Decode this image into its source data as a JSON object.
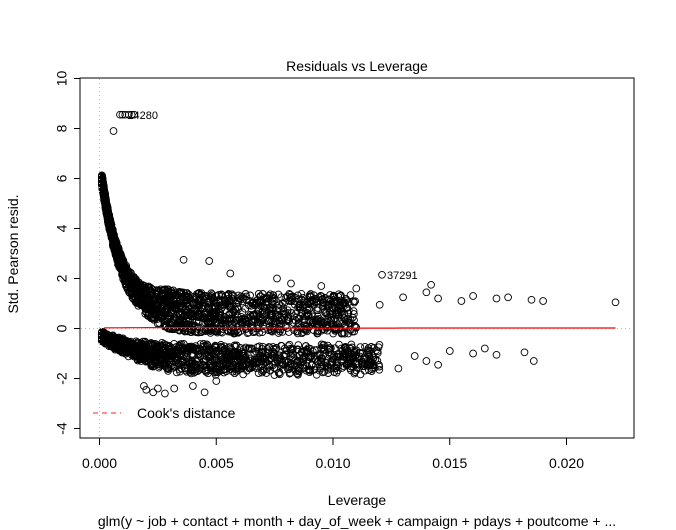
{
  "chart_data": {
    "type": "scatter",
    "title": "Residuals vs Leverage",
    "xlabel": "Leverage",
    "ylabel": "Std. Pearson resid.",
    "subtitle": "glm(y ~ job + contact + month + day_of_week + campaign + pdays + poutcome + ...",
    "xlim": [
      0,
      0.0222
    ],
    "ylim": [
      -4,
      10
    ],
    "xticks": [
      {
        "value": 0.0,
        "label": "0.000"
      },
      {
        "value": 0.005,
        "label": "0.005"
      },
      {
        "value": 0.01,
        "label": "0.010"
      },
      {
        "value": 0.015,
        "label": "0.015"
      },
      {
        "value": 0.02,
        "label": "0.020"
      }
    ],
    "yticks": [
      {
        "value": -4,
        "label": "-4"
      },
      {
        "value": -2,
        "label": "-2"
      },
      {
        "value": 0,
        "label": "0"
      },
      {
        "value": 2,
        "label": "2"
      },
      {
        "value": 4,
        "label": "4"
      },
      {
        "value": 6,
        "label": "6"
      },
      {
        "value": 8,
        "label": "8"
      },
      {
        "value": 10,
        "label": "10"
      }
    ],
    "grid": false,
    "legend": {
      "position": "bottom-left",
      "entries": [
        {
          "label": "Cook's distance",
          "color": "#ff4d4d",
          "style": "dashed"
        }
      ]
    },
    "annotations": [
      {
        "label": "24280",
        "x": 0.00098,
        "y": 8.55
      },
      {
        "label": "37291",
        "x": 0.0121,
        "y": 2.15
      }
    ],
    "reference_lines": {
      "horizontal_zero": "dotted",
      "vertical_zero": "dotted"
    },
    "colors": {
      "points": "#000000",
      "smooth": "#ff0000",
      "cook": "#ff4d4d",
      "guide": "#bbbbbb"
    },
    "points_outliers": [
      {
        "x": 0.00088,
        "y": 8.55
      },
      {
        "x": 0.00098,
        "y": 8.55
      },
      {
        "x": 0.0011,
        "y": 8.55
      },
      {
        "x": 0.00125,
        "y": 8.55
      },
      {
        "x": 0.00138,
        "y": 8.55
      },
      {
        "x": 0.00148,
        "y": 8.55
      },
      {
        "x": 0.0006,
        "y": 7.9
      },
      {
        "x": 0.0121,
        "y": 2.15
      },
      {
        "x": 0.0221,
        "y": 1.05
      },
      {
        "x": 0.019,
        "y": 1.1
      },
      {
        "x": 0.0185,
        "y": 1.15
      },
      {
        "x": 0.0175,
        "y": 1.25
      },
      {
        "x": 0.017,
        "y": 1.2
      },
      {
        "x": 0.016,
        "y": 1.3
      },
      {
        "x": 0.0155,
        "y": 1.1
      },
      {
        "x": 0.0145,
        "y": 1.2
      },
      {
        "x": 0.014,
        "y": 1.45
      },
      {
        "x": 0.0142,
        "y": 1.75
      },
      {
        "x": 0.013,
        "y": 1.25
      },
      {
        "x": 0.012,
        "y": 0.95
      },
      {
        "x": 0.0186,
        "y": -1.3
      },
      {
        "x": 0.0182,
        "y": -0.95
      },
      {
        "x": 0.017,
        "y": -1.05
      },
      {
        "x": 0.0165,
        "y": -0.8
      },
      {
        "x": 0.016,
        "y": -1.0
      },
      {
        "x": 0.015,
        "y": -0.9
      },
      {
        "x": 0.0145,
        "y": -1.45
      },
      {
        "x": 0.014,
        "y": -1.3
      },
      {
        "x": 0.0135,
        "y": -1.1
      },
      {
        "x": 0.0128,
        "y": -1.6
      },
      {
        "x": 0.011,
        "y": -1.4
      },
      {
        "x": 0.0105,
        "y": -1.1
      },
      {
        "x": 0.0105,
        "y": -0.75
      },
      {
        "x": 0.0095,
        "y": -1.2
      },
      {
        "x": 0.0093,
        "y": -1.85
      },
      {
        "x": 0.0085,
        "y": -1.85
      },
      {
        "x": 0.0082,
        "y": -1.5
      },
      {
        "x": 0.0036,
        "y": 2.75
      },
      {
        "x": 0.0047,
        "y": 2.7
      },
      {
        "x": 0.0056,
        "y": 2.2
      },
      {
        "x": 0.0076,
        "y": 2.0
      },
      {
        "x": 0.0082,
        "y": 1.8
      },
      {
        "x": 0.0095,
        "y": 1.7
      },
      {
        "x": 0.011,
        "y": 1.6
      },
      {
        "x": 0.0019,
        "y": -2.3
      },
      {
        "x": 0.002,
        "y": -2.45
      },
      {
        "x": 0.0023,
        "y": -2.55
      },
      {
        "x": 0.0025,
        "y": -2.4
      },
      {
        "x": 0.0028,
        "y": -2.6
      },
      {
        "x": 0.0032,
        "y": -2.4
      },
      {
        "x": 0.004,
        "y": -2.3
      },
      {
        "x": 0.0045,
        "y": -2.55
      },
      {
        "x": 0.005,
        "y": -2.1
      }
    ],
    "bands": [
      {
        "description": "upper",
        "x_start": 0.0001,
        "x_end": 0.011,
        "y_start": 6.6,
        "y_floor": 0.35,
        "y_decay": 0.00085,
        "spread_max": 1.6,
        "density": 1800
      },
      {
        "description": "lower",
        "x_start": 0.0001,
        "x_end": 0.012,
        "y_top": -0.15,
        "y_floor": -0.7,
        "y_decay": 0.0012,
        "spread_max": 1.2,
        "density": 1500
      }
    ]
  }
}
